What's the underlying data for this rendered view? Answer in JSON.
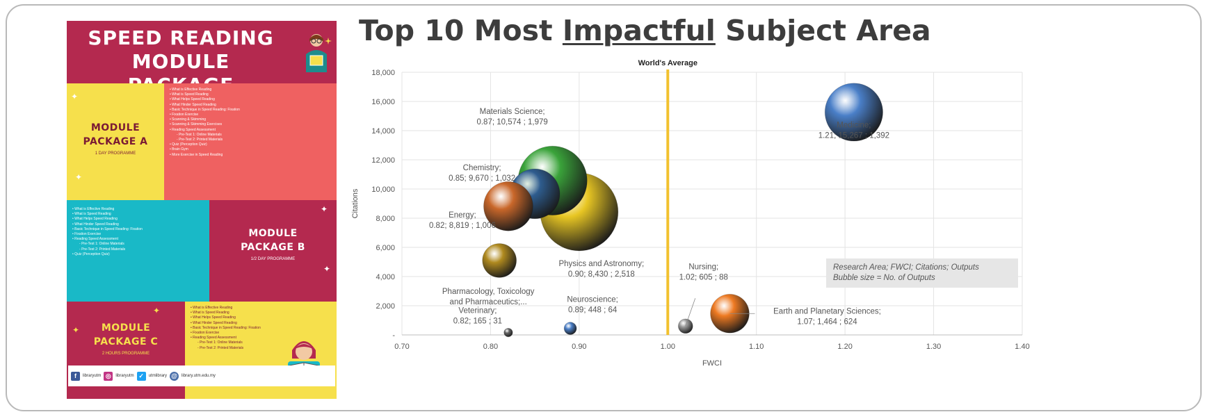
{
  "poster": {
    "title_line1": "SPEED READING",
    "title_line2": "MODULE PACKAGE",
    "module_a": {
      "title_line1": "MODULE",
      "title_line2": "PACKAGE A",
      "duration": "1 DAY PROGRAMME",
      "topics": [
        "What is Effective Reading",
        "What is Speed Reading",
        "What Helps Speed Reading",
        "What Hinder Speed Reading",
        "Basic Technique in Speed Reading: Fixation",
        "Fixation Exercise",
        "Scanning & Skimming",
        "Scanning & Skimming Exercises",
        "Reading Speed Assessment"
      ],
      "subtopics": [
        "Pre-Test 1: Online Materials",
        "Pre-Test 2: Printed Materials"
      ],
      "topics_after": [
        "Quiz (Perception Quiz)",
        "Brain Gym",
        "More Exercise in Speed Reading"
      ]
    },
    "module_b": {
      "title_line1": "MODULE",
      "title_line2": "PACKAGE B",
      "duration": "1/2 DAY PROGRAMME",
      "topics": [
        "What is Effective Reading",
        "What is Speed Reading",
        "What Helps Speed Reading",
        "What Hinder Speed Reading",
        "Basic Technique in Speed Reading: Fixation",
        "Fixation Exercise",
        "Reading Speed Assessment"
      ],
      "subtopics": [
        "Pre-Test 1: Online Materials",
        "Pre-Test 2: Printed Materials"
      ],
      "topics_after": [
        "Quiz (Perception Quiz)"
      ]
    },
    "module_c": {
      "title_line1": "MODULE",
      "title_line2": "PACKAGE C",
      "duration": "2 HOURS PROGRAMME",
      "topics": [
        "What is Effective Reading",
        "What is Speed Reading",
        "What Helps Speed Reading",
        "What Hinder Speed Reading",
        "Basic Technique in Speed Reading: Fixation",
        "Fixation Exercise",
        "Reading Speed Assessment"
      ],
      "subtopics": [
        "Pre-Test 1: Online Materials",
        "Pre-Test 2: Printed Materials"
      ]
    },
    "footer": {
      "facebook": "libraryutm",
      "instagram": "libraryutm",
      "twitter": "utmlibrary",
      "website": "library.utm.edu.my"
    },
    "colors": {
      "crimson": "#b4294f",
      "yellow": "#f6e04c",
      "coral": "#ef6161",
      "teal": "#19b9c7"
    }
  },
  "chart_title": {
    "before": "Top 10 Most ",
    "underlined": "Impactful",
    "after": " Subject Area"
  },
  "note": {
    "line1": "Research Area; FWCI; Citations; Outputs",
    "line2": "Bubble size = No. of Outputs"
  },
  "chart_data": {
    "type": "scatter",
    "variant": "bubble",
    "xlabel": "FWCI",
    "ylabel": "Citations",
    "xlim": [
      0.7,
      1.4
    ],
    "ylim": [
      0,
      18000
    ],
    "x_ticks": [
      "0.70",
      "0.80",
      "0.90",
      "1.00",
      "1.10",
      "1.20",
      "1.30",
      "1.40"
    ],
    "y_ticks": [
      "-",
      "2,000",
      "4,000",
      "6,000",
      "8,000",
      "10,000",
      "12,000",
      "14,000",
      "16,000",
      "18,000"
    ],
    "reference_line": {
      "x": 1.0,
      "label": "World's Average",
      "color": "#f2c12e"
    },
    "grid": true,
    "points": [
      {
        "label_lines": [
          "Medicine;",
          "1.21;  15,267 ;  1,392"
        ],
        "x": 1.21,
        "y": 15267,
        "outputs": 1392,
        "color": "#4a7fc8"
      },
      {
        "label_lines": [
          "Materials Science;",
          "0.87;  10,574 ;  1,979"
        ],
        "x": 0.87,
        "y": 10574,
        "outputs": 1979,
        "color": "#3aa33a"
      },
      {
        "label_lines": [
          "Physics and Astronomy;",
          "0.90;  8,430 ;  2,518"
        ],
        "x": 0.9,
        "y": 8430,
        "outputs": 2518,
        "color": "#e8c623"
      },
      {
        "label_lines": [
          "Chemistry;",
          "0.85;  9,670 ;  1,032"
        ],
        "x": 0.85,
        "y": 9670,
        "outputs": 1032,
        "color": "#2e5c8e"
      },
      {
        "label_lines": [
          "Energy;",
          "0.82;  8,819 ;  1,006"
        ],
        "x": 0.82,
        "y": 8819,
        "outputs": 1006,
        "color": "#c9672a"
      },
      {
        "label_lines": [
          "Pharmacology, Toxicology",
          "and Pharmaceutics;..."
        ],
        "x": 0.81,
        "y": 5100,
        "outputs": 480,
        "color": "#b08a1f"
      },
      {
        "label_lines": [
          "Nursing;",
          "1.02;  605 ;  88"
        ],
        "x": 1.02,
        "y": 605,
        "outputs": 88,
        "color": "#9a9a9a"
      },
      {
        "label_lines": [
          "Earth and Planetary Sciences;",
          "1.07;  1,464 ;  624"
        ],
        "x": 1.07,
        "y": 1464,
        "outputs": 624,
        "color": "#ee7a22"
      },
      {
        "label_lines": [
          "Neuroscience;",
          "0.89;  448 ;  64"
        ],
        "x": 0.89,
        "y": 448,
        "outputs": 64,
        "color": "#4a7fc8"
      },
      {
        "label_lines": [
          "Veterinary;",
          "0.82;  165 ;  31"
        ],
        "x": 0.82,
        "y": 165,
        "outputs": 31,
        "color": "#666666"
      }
    ]
  }
}
